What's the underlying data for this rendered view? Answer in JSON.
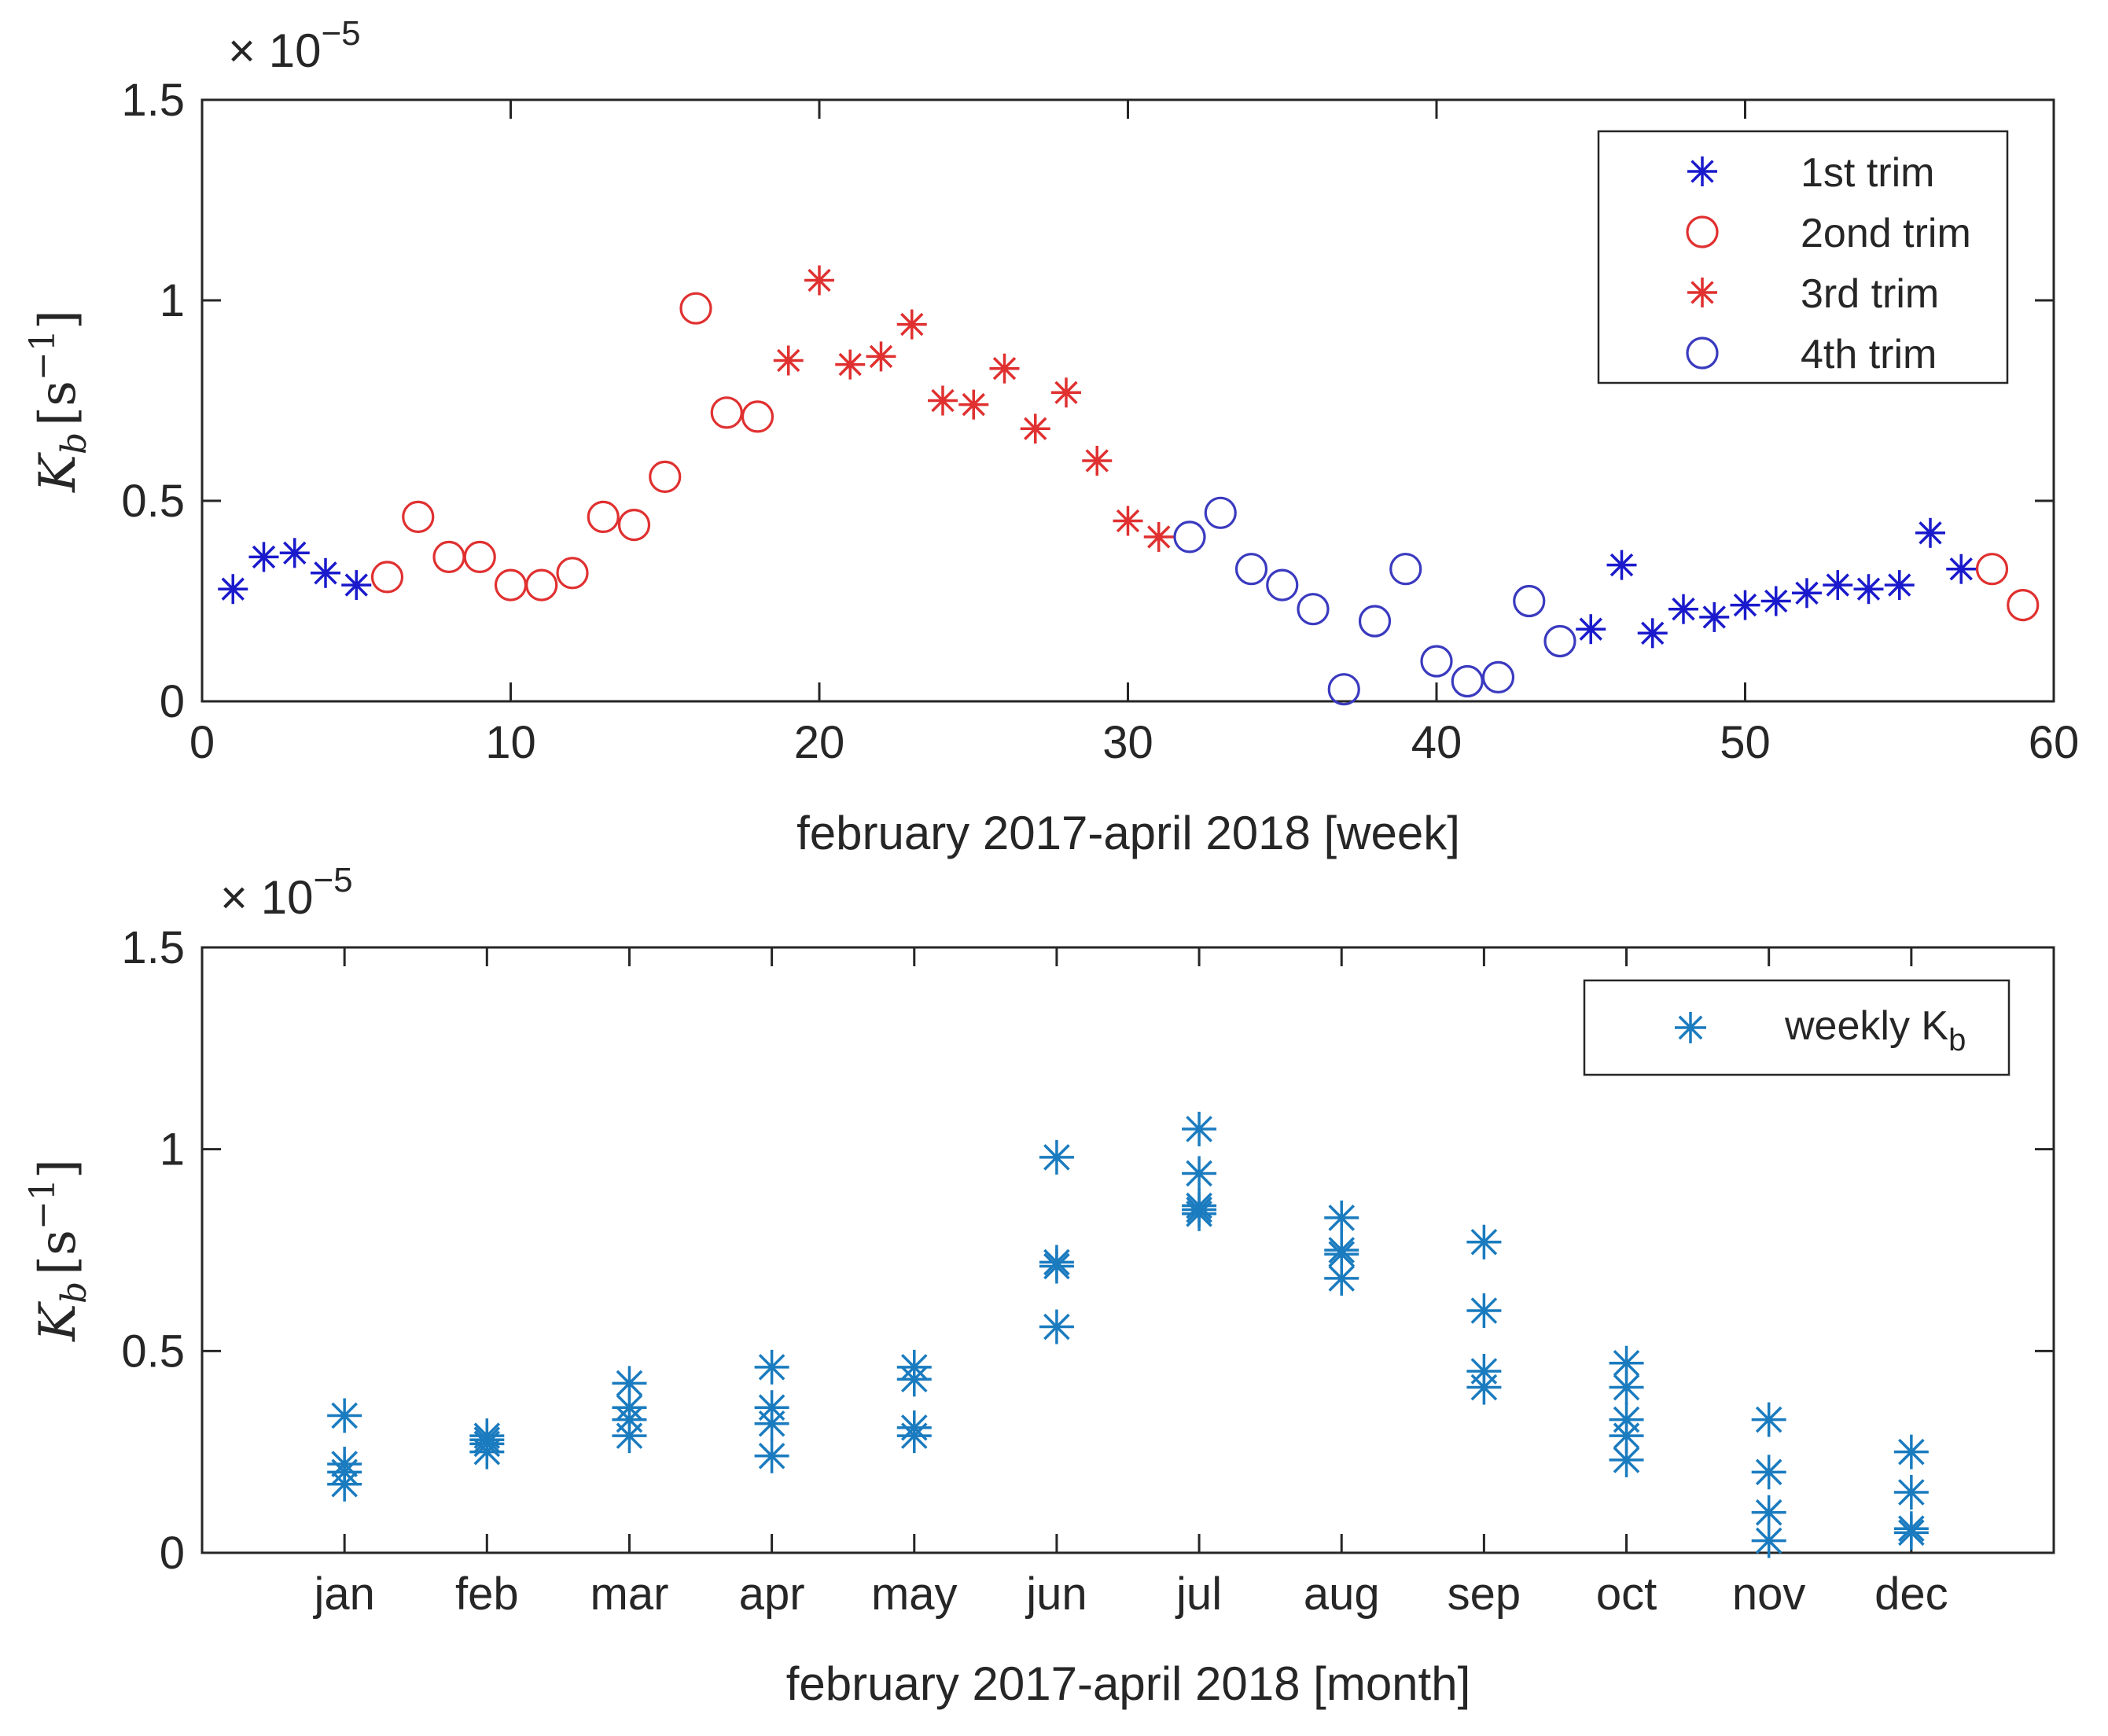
{
  "chart_data": [
    {
      "type": "scatter",
      "xlabel": "february 2017-april 2018 [week]",
      "ylabel": {
        "base": "K",
        "sub": "b",
        "unit_open": "[s",
        "unit_sup": "−1",
        "unit_close": "]"
      },
      "exponent": {
        "prefix": "× 10",
        "power": "−5"
      },
      "xlim": [
        0,
        60
      ],
      "ylim": [
        0,
        1.5
      ],
      "xticks": [
        0,
        10,
        20,
        30,
        40,
        50,
        60
      ],
      "xtick_labels": [
        "0",
        "10",
        "20",
        "30",
        "40",
        "50",
        "60"
      ],
      "yticks": [
        0,
        0.5,
        1,
        1.5
      ],
      "ytick_labels": [
        "0",
        "0.5",
        "1",
        "1.5"
      ],
      "legend_position": "top-right",
      "series": [
        {
          "name": "1st trim",
          "marker": "asterisk",
          "color": "#1a1acc",
          "points": [
            [
              1,
              0.28
            ],
            [
              2,
              0.36
            ],
            [
              3,
              0.37
            ],
            [
              4,
              0.32
            ],
            [
              5,
              0.29
            ],
            [
              45,
              0.18
            ],
            [
              46,
              0.34
            ],
            [
              47,
              0.17
            ],
            [
              48,
              0.23
            ],
            [
              49,
              0.21
            ],
            [
              50,
              0.24
            ],
            [
              51,
              0.25
            ],
            [
              52,
              0.27
            ],
            [
              53,
              0.29
            ],
            [
              54,
              0.28
            ],
            [
              55,
              0.29
            ],
            [
              56,
              0.42
            ],
            [
              57,
              0.33
            ]
          ]
        },
        {
          "name": "2ond trim",
          "marker": "circle",
          "color": "#e03030",
          "points": [
            [
              6,
              0.31
            ],
            [
              7,
              0.46
            ],
            [
              8,
              0.36
            ],
            [
              9,
              0.36
            ],
            [
              10,
              0.29
            ],
            [
              11,
              0.29
            ],
            [
              12,
              0.32
            ],
            [
              13,
              0.46
            ],
            [
              14,
              0.44
            ],
            [
              15,
              0.56
            ],
            [
              16,
              0.98
            ],
            [
              17,
              0.72
            ],
            [
              18,
              0.71
            ],
            [
              58,
              0.33
            ],
            [
              59,
              0.24
            ]
          ]
        },
        {
          "name": "3rd trim",
          "marker": "asterisk",
          "color": "#e03030",
          "points": [
            [
              19,
              0.85
            ],
            [
              20,
              1.05
            ],
            [
              21,
              0.84
            ],
            [
              22,
              0.86
            ],
            [
              23,
              0.94
            ],
            [
              24,
              0.75
            ],
            [
              25,
              0.74
            ],
            [
              26,
              0.83
            ],
            [
              27,
              0.68
            ],
            [
              28,
              0.77
            ],
            [
              29,
              0.6
            ],
            [
              30,
              0.45
            ],
            [
              31,
              0.41
            ]
          ]
        },
        {
          "name": "4th trim",
          "marker": "circle",
          "color": "#3a3ac0",
          "points": [
            [
              32,
              0.41
            ],
            [
              33,
              0.47
            ],
            [
              34,
              0.33
            ],
            [
              35,
              0.29
            ],
            [
              36,
              0.23
            ],
            [
              37,
              0.03
            ],
            [
              38,
              0.2
            ],
            [
              39,
              0.33
            ],
            [
              40,
              0.1
            ],
            [
              41,
              0.05
            ],
            [
              42,
              0.06
            ],
            [
              43,
              0.25
            ],
            [
              44,
              0.15
            ]
          ]
        }
      ]
    },
    {
      "type": "scatter",
      "xlabel": "february 2017-april 2018 [month]",
      "ylabel": {
        "base": "K",
        "sub": "b",
        "unit_open": "[s",
        "unit_sup": "−1",
        "unit_close": "]"
      },
      "exponent": {
        "prefix": "× 10",
        "power": "−5"
      },
      "categories": [
        "jan",
        "feb",
        "mar",
        "apr",
        "may",
        "jun",
        "jul",
        "aug",
        "sep",
        "oct",
        "nov",
        "dec"
      ],
      "xlim": [
        0,
        13
      ],
      "ylim": [
        0,
        1.5
      ],
      "yticks": [
        0,
        0.5,
        1,
        1.5
      ],
      "ytick_labels": [
        "0",
        "0.5",
        "1",
        "1.5"
      ],
      "legend_position": "top-right",
      "series": [
        {
          "name": "weekly K",
          "name_sub": "b",
          "marker": "asterisk",
          "color": "#1a7bbf",
          "points": [
            [
              "jan",
              0.34
            ],
            [
              "jan",
              0.22
            ],
            [
              "jan",
              0.2
            ],
            [
              "jan",
              0.17
            ],
            [
              "feb",
              0.29
            ],
            [
              "feb",
              0.27
            ],
            [
              "feb",
              0.25
            ],
            [
              "feb",
              0.28
            ],
            [
              "mar",
              0.42
            ],
            [
              "mar",
              0.36
            ],
            [
              "mar",
              0.33
            ],
            [
              "mar",
              0.29
            ],
            [
              "apr",
              0.46
            ],
            [
              "apr",
              0.36
            ],
            [
              "apr",
              0.32
            ],
            [
              "apr",
              0.24
            ],
            [
              "may",
              0.46
            ],
            [
              "may",
              0.43
            ],
            [
              "may",
              0.31
            ],
            [
              "may",
              0.29
            ],
            [
              "jun",
              0.98
            ],
            [
              "jun",
              0.72
            ],
            [
              "jun",
              0.71
            ],
            [
              "jun",
              0.56
            ],
            [
              "jul",
              1.05
            ],
            [
              "jul",
              0.94
            ],
            [
              "jul",
              0.86
            ],
            [
              "jul",
              0.84
            ],
            [
              "jul",
              0.85
            ],
            [
              "aug",
              0.83
            ],
            [
              "aug",
              0.75
            ],
            [
              "aug",
              0.74
            ],
            [
              "aug",
              0.68
            ],
            [
              "sep",
              0.77
            ],
            [
              "sep",
              0.6
            ],
            [
              "sep",
              0.45
            ],
            [
              "sep",
              0.41
            ],
            [
              "oct",
              0.47
            ],
            [
              "oct",
              0.41
            ],
            [
              "oct",
              0.33
            ],
            [
              "oct",
              0.29
            ],
            [
              "oct",
              0.23
            ],
            [
              "nov",
              0.33
            ],
            [
              "nov",
              0.2
            ],
            [
              "nov",
              0.1
            ],
            [
              "nov",
              0.03
            ],
            [
              "dec",
              0.25
            ],
            [
              "dec",
              0.15
            ],
            [
              "dec",
              0.06
            ],
            [
              "dec",
              0.05
            ]
          ]
        }
      ]
    }
  ]
}
